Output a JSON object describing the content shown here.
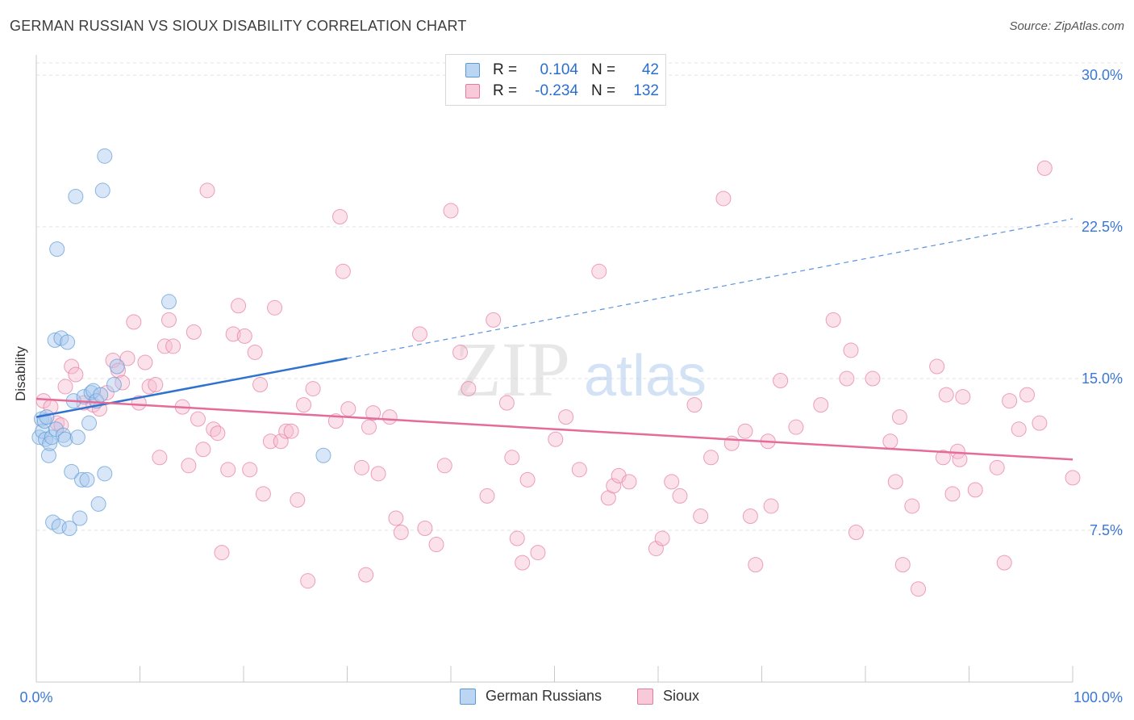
{
  "title": "GERMAN RUSSIAN VS SIOUX DISABILITY CORRELATION CHART",
  "source": "Source: ZipAtlas.com",
  "watermark": {
    "zip": "ZIP",
    "atlas": "atlas"
  },
  "legend": {
    "rows": [
      {
        "r_label": "R =",
        "r_value": "0.104",
        "n_label": "N =",
        "n_value": "42"
      },
      {
        "r_label": "R =",
        "r_value": "-0.234",
        "n_label": "N =",
        "n_value": "132"
      }
    ]
  },
  "bottom_legend": [
    "German Russians",
    "Sioux"
  ],
  "chart_data": {
    "type": "scatter",
    "title": "GERMAN RUSSIAN VS SIOUX DISABILITY CORRELATION CHART",
    "ylabel": "Disability",
    "xlabel": "",
    "xlim": [
      0,
      100
    ],
    "ylim": [
      0,
      31
    ],
    "x_tick_labels": [
      "0.0%",
      "100.0%"
    ],
    "y_ticks": [
      7.5,
      15.0,
      22.5,
      30.0
    ],
    "y_tick_labels": [
      "7.5%",
      "15.0%",
      "22.5%",
      "30.0%"
    ],
    "grid": "horizontal dashed",
    "series": [
      {
        "name": "German Russians",
        "color": "#5b9bd5",
        "fill": "#a9c8ee",
        "trend": {
          "x": [
            0,
            30
          ],
          "y": [
            13.1,
            16.0
          ],
          "extended_to": [
            100,
            22.9
          ]
        },
        "points": [
          [
            0.3,
            12.1
          ],
          [
            0.5,
            13.0
          ],
          [
            0.6,
            12.4
          ],
          [
            0.8,
            12.9
          ],
          [
            0.9,
            12.0
          ],
          [
            1.0,
            13.1
          ],
          [
            1.2,
            11.2
          ],
          [
            1.3,
            11.8
          ],
          [
            1.5,
            12.1
          ],
          [
            1.6,
            7.9
          ],
          [
            1.8,
            16.9
          ],
          [
            1.9,
            12.5
          ],
          [
            2.0,
            21.4
          ],
          [
            2.2,
            7.7
          ],
          [
            2.4,
            17.0
          ],
          [
            2.6,
            12.2
          ],
          [
            2.8,
            12.0
          ],
          [
            3.0,
            16.8
          ],
          [
            3.2,
            7.6
          ],
          [
            3.4,
            10.4
          ],
          [
            3.6,
            13.9
          ],
          [
            3.8,
            24.0
          ],
          [
            4.0,
            12.1
          ],
          [
            4.2,
            8.1
          ],
          [
            4.4,
            10.0
          ],
          [
            4.6,
            14.1
          ],
          [
            4.9,
            10.0
          ],
          [
            5.1,
            12.8
          ],
          [
            5.3,
            14.3
          ],
          [
            5.5,
            14.4
          ],
          [
            5.8,
            13.9
          ],
          [
            6.0,
            8.8
          ],
          [
            6.2,
            14.2
          ],
          [
            6.4,
            24.3
          ],
          [
            6.6,
            10.3
          ],
          [
            6.6,
            26.0
          ],
          [
            7.5,
            14.7
          ],
          [
            7.8,
            15.6
          ],
          [
            12.8,
            18.8
          ],
          [
            27.7,
            11.2
          ]
        ]
      },
      {
        "name": "Sioux",
        "color": "#e57aa1",
        "fill": "#f6bcd0",
        "trend": {
          "x": [
            0,
            100
          ],
          "y": [
            14.0,
            11.0
          ]
        },
        "points": [
          [
            0.7,
            13.9
          ],
          [
            1.4,
            13.6
          ],
          [
            2.0,
            12.8
          ],
          [
            2.4,
            12.7
          ],
          [
            2.8,
            14.6
          ],
          [
            3.4,
            15.6
          ],
          [
            3.8,
            15.2
          ],
          [
            4.6,
            13.8
          ],
          [
            5.5,
            13.7
          ],
          [
            6.1,
            13.5
          ],
          [
            6.8,
            14.3
          ],
          [
            7.4,
            15.9
          ],
          [
            7.9,
            15.4
          ],
          [
            8.3,
            14.8
          ],
          [
            8.8,
            16.0
          ],
          [
            9.4,
            17.8
          ],
          [
            9.9,
            13.8
          ],
          [
            10.5,
            15.8
          ],
          [
            10.9,
            14.6
          ],
          [
            11.5,
            14.7
          ],
          [
            11.9,
            11.1
          ],
          [
            12.4,
            16.6
          ],
          [
            12.8,
            17.9
          ],
          [
            13.2,
            16.6
          ],
          [
            14.1,
            13.6
          ],
          [
            14.7,
            10.7
          ],
          [
            15.2,
            17.3
          ],
          [
            15.6,
            13.0
          ],
          [
            16.1,
            11.5
          ],
          [
            16.5,
            24.3
          ],
          [
            17.1,
            12.5
          ],
          [
            17.5,
            12.3
          ],
          [
            17.9,
            6.4
          ],
          [
            18.5,
            10.5
          ],
          [
            19.0,
            17.2
          ],
          [
            19.5,
            18.6
          ],
          [
            20.1,
            17.1
          ],
          [
            20.6,
            10.5
          ],
          [
            21.1,
            16.3
          ],
          [
            21.6,
            14.7
          ],
          [
            21.9,
            9.3
          ],
          [
            22.6,
            11.9
          ],
          [
            23.0,
            18.5
          ],
          [
            23.6,
            11.9
          ],
          [
            24.1,
            12.4
          ],
          [
            24.6,
            12.4
          ],
          [
            25.2,
            9.0
          ],
          [
            25.8,
            13.7
          ],
          [
            26.2,
            5.0
          ],
          [
            26.7,
            14.5
          ],
          [
            28.9,
            12.9
          ],
          [
            29.3,
            23.0
          ],
          [
            29.6,
            20.3
          ],
          [
            30.1,
            13.5
          ],
          [
            31.4,
            10.6
          ],
          [
            31.8,
            5.3
          ],
          [
            32.1,
            12.6
          ],
          [
            32.5,
            13.3
          ],
          [
            33.0,
            10.3
          ],
          [
            34.1,
            13.1
          ],
          [
            34.7,
            8.1
          ],
          [
            35.2,
            7.4
          ],
          [
            37.0,
            17.2
          ],
          [
            37.5,
            7.6
          ],
          [
            38.6,
            6.8
          ],
          [
            39.4,
            10.7
          ],
          [
            40.0,
            23.3
          ],
          [
            40.9,
            16.3
          ],
          [
            41.7,
            14.5
          ],
          [
            43.5,
            9.2
          ],
          [
            44.1,
            17.9
          ],
          [
            45.4,
            13.8
          ],
          [
            45.9,
            11.1
          ],
          [
            46.4,
            7.1
          ],
          [
            46.9,
            5.9
          ],
          [
            47.4,
            10.0
          ],
          [
            48.4,
            6.4
          ],
          [
            50.1,
            12.0
          ],
          [
            51.1,
            13.1
          ],
          [
            52.4,
            10.5
          ],
          [
            54.3,
            20.3
          ],
          [
            55.2,
            9.1
          ],
          [
            55.7,
            9.7
          ],
          [
            56.2,
            10.2
          ],
          [
            57.2,
            9.9
          ],
          [
            59.8,
            6.6
          ],
          [
            60.4,
            7.1
          ],
          [
            61.3,
            9.9
          ],
          [
            62.1,
            9.2
          ],
          [
            63.5,
            13.7
          ],
          [
            64.1,
            8.2
          ],
          [
            65.1,
            11.1
          ],
          [
            66.3,
            23.9
          ],
          [
            67.1,
            11.8
          ],
          [
            68.4,
            12.4
          ],
          [
            68.9,
            8.2
          ],
          [
            69.4,
            5.8
          ],
          [
            70.6,
            11.9
          ],
          [
            70.9,
            8.7
          ],
          [
            71.8,
            14.9
          ],
          [
            73.3,
            12.6
          ],
          [
            75.7,
            13.7
          ],
          [
            76.9,
            17.9
          ],
          [
            78.2,
            15.0
          ],
          [
            78.6,
            16.4
          ],
          [
            79.1,
            7.4
          ],
          [
            80.7,
            15.0
          ],
          [
            82.4,
            11.9
          ],
          [
            82.9,
            9.9
          ],
          [
            83.3,
            13.1
          ],
          [
            83.6,
            5.8
          ],
          [
            84.5,
            8.7
          ],
          [
            85.1,
            4.6
          ],
          [
            86.9,
            15.6
          ],
          [
            87.5,
            11.1
          ],
          [
            87.8,
            14.2
          ],
          [
            88.4,
            9.3
          ],
          [
            88.9,
            11.4
          ],
          [
            89.1,
            11.0
          ],
          [
            89.4,
            14.1
          ],
          [
            90.6,
            9.5
          ],
          [
            92.7,
            10.6
          ],
          [
            93.4,
            5.9
          ],
          [
            93.9,
            13.9
          ],
          [
            94.8,
            12.5
          ],
          [
            95.6,
            14.2
          ],
          [
            96.8,
            12.8
          ],
          [
            97.3,
            25.4
          ],
          [
            100.0,
            10.1
          ]
        ]
      }
    ]
  }
}
